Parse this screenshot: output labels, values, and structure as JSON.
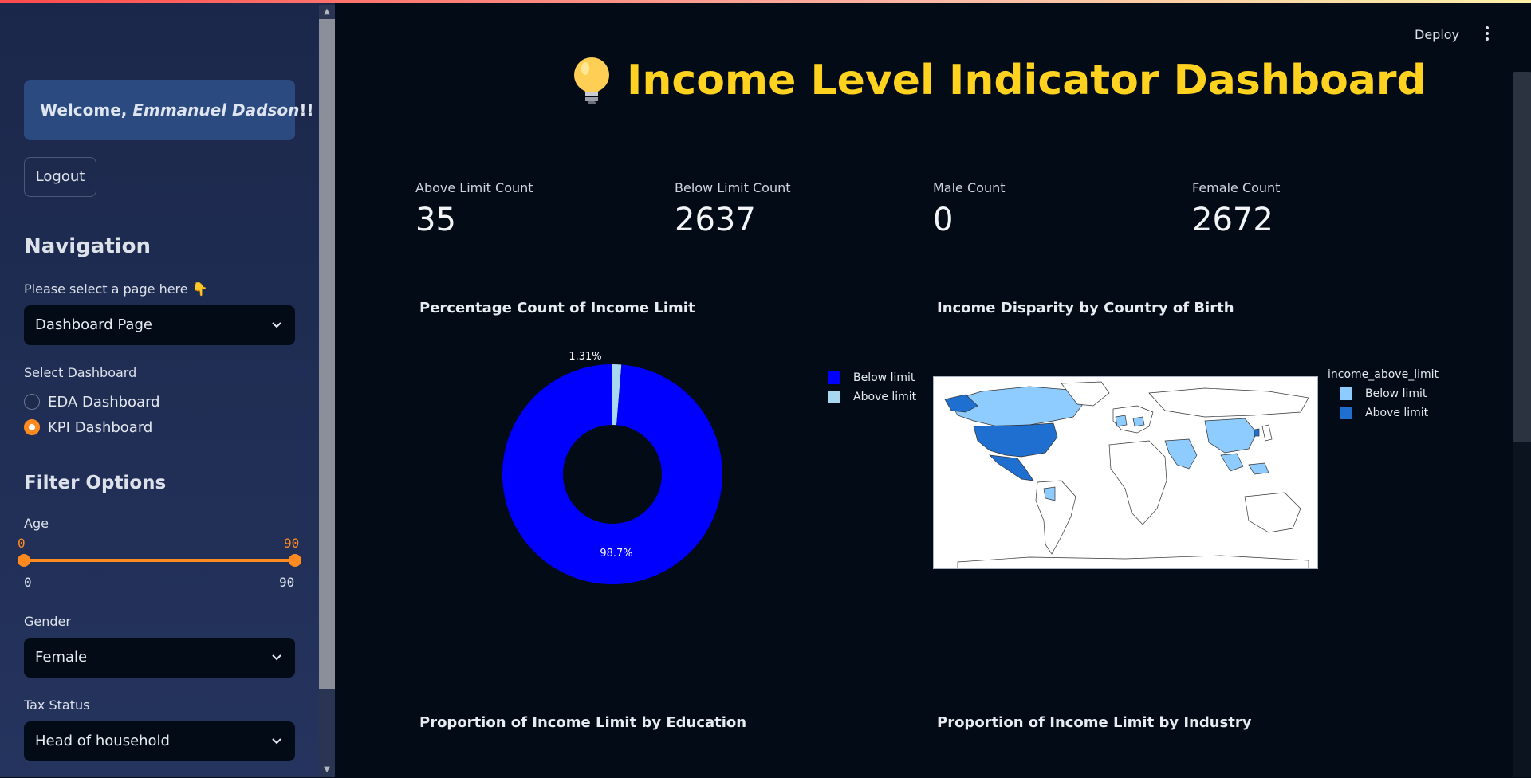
{
  "sidebar": {
    "welcome_prefix": "Welcome, ",
    "welcome_name": "Emmanuel Dadson",
    "welcome_suffix": "!!",
    "logout_label": "Logout",
    "navigation_heading": "Navigation",
    "page_select_label": "Please select a page here 👇",
    "page_select_value": "Dashboard Page",
    "dashboard_label": "Select Dashboard",
    "dashboard_options": [
      {
        "label": "EDA Dashboard",
        "selected": false
      },
      {
        "label": "KPI Dashboard",
        "selected": true
      }
    ],
    "filter_heading": "Filter Options",
    "age_label": "Age",
    "age_min_value": "0",
    "age_max_value": "90",
    "age_range_min": "0",
    "age_range_max": "90",
    "gender_label": "Gender",
    "gender_value": "Female",
    "tax_label": "Tax Status",
    "tax_value": "Head of household"
  },
  "header": {
    "deploy_label": "Deploy",
    "menu_icon": "vertical-dots-icon"
  },
  "main": {
    "title": "Income Level Indicator Dashboard",
    "title_icon": "lightbulb-icon",
    "kpis": [
      {
        "label": "Above Limit Count",
        "value": "35"
      },
      {
        "label": "Below Limit Count",
        "value": "2637"
      },
      {
        "label": "Male Count",
        "value": "0"
      },
      {
        "label": "Female Count",
        "value": "2672"
      }
    ],
    "pie_title": "Percentage Count of Income Limit",
    "map_title": "Income Disparity by Country of Birth",
    "map_legend_title": "income_above_limit",
    "map_legend": [
      {
        "label": "Below limit",
        "color": "#8ecbff"
      },
      {
        "label": "Above limit",
        "color": "#1f6fd1"
      }
    ],
    "education_title": "Proportion of Income Limit by Education",
    "industry_title": "Proportion of Income Limit by Industry"
  },
  "colors": {
    "accent_orange": "#ff8a1f",
    "title_yellow": "#ffd21f",
    "below_limit": "#0000ff",
    "above_limit": "#a8d8f0"
  },
  "chart_data": {
    "type": "pie",
    "title": "Percentage Count of Income Limit",
    "donut": true,
    "categories": [
      "Below limit",
      "Above limit"
    ],
    "values": [
      98.7,
      1.31
    ],
    "labels": [
      "98.7%",
      "1.31%"
    ],
    "colors": [
      "#0000ff",
      "#a8d8f0"
    ],
    "legend": "right"
  }
}
